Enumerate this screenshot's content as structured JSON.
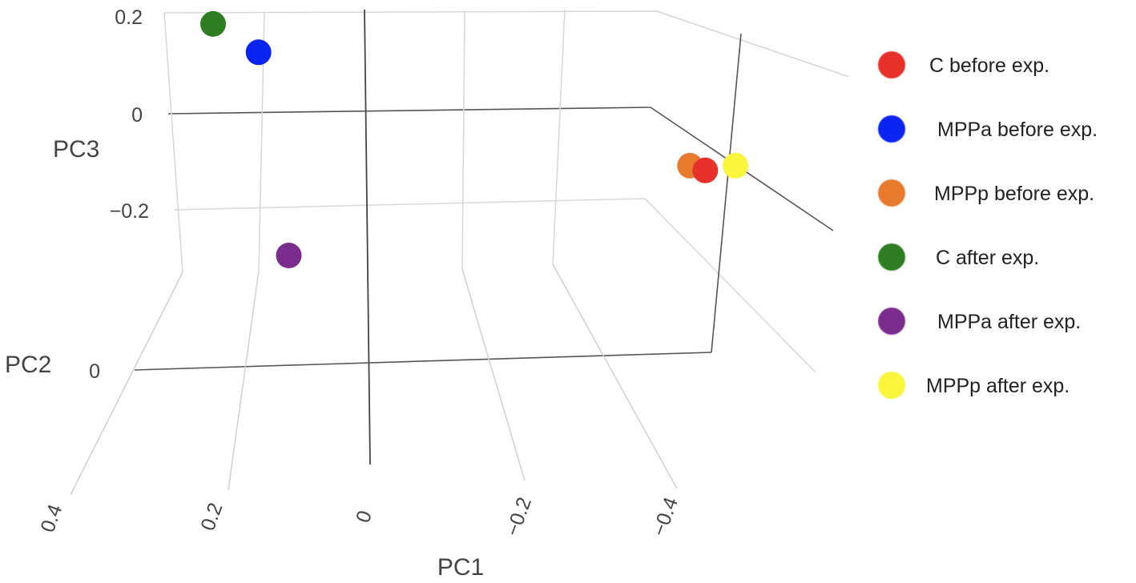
{
  "chart_data": {
    "type": "scatter",
    "title": "",
    "axes": {
      "x": {
        "label": "PC1",
        "ticks": [
          "0.4",
          "0.2",
          "0",
          "−0.2",
          "−0.4"
        ]
      },
      "y": {
        "label": "PC2",
        "ticks": [
          "0"
        ]
      },
      "z": {
        "label": "PC3",
        "ticks": [
          "0.2",
          "0",
          "−0.2"
        ]
      }
    },
    "legend_position": "right",
    "series": [
      {
        "name": "C before exp.",
        "color": "#e8302a",
        "pc1": -0.45,
        "pc2": 0.0,
        "pc3": -0.12
      },
      {
        "name": "MPPa before exp.",
        "color": "#0a24f2",
        "pc1": 0.14,
        "pc2": 0.0,
        "pc3": 0.13
      },
      {
        "name": "MPPp before exp.",
        "color": "#e87a2e",
        "pc1": -0.43,
        "pc2": 0.0,
        "pc3": -0.11
      },
      {
        "name": "C after exp.",
        "color": "#2e7d22",
        "pc1": 0.2,
        "pc2": 0.0,
        "pc3": 0.19
      },
      {
        "name": "MPPa after exp.",
        "color": "#7b2d8e",
        "pc1": 0.1,
        "pc2": 0.0,
        "pc3": -0.3
      },
      {
        "name": "MPPp after exp.",
        "color": "#f8f53a",
        "pc1": -0.49,
        "pc2": 0.0,
        "pc3": -0.11
      }
    ]
  }
}
